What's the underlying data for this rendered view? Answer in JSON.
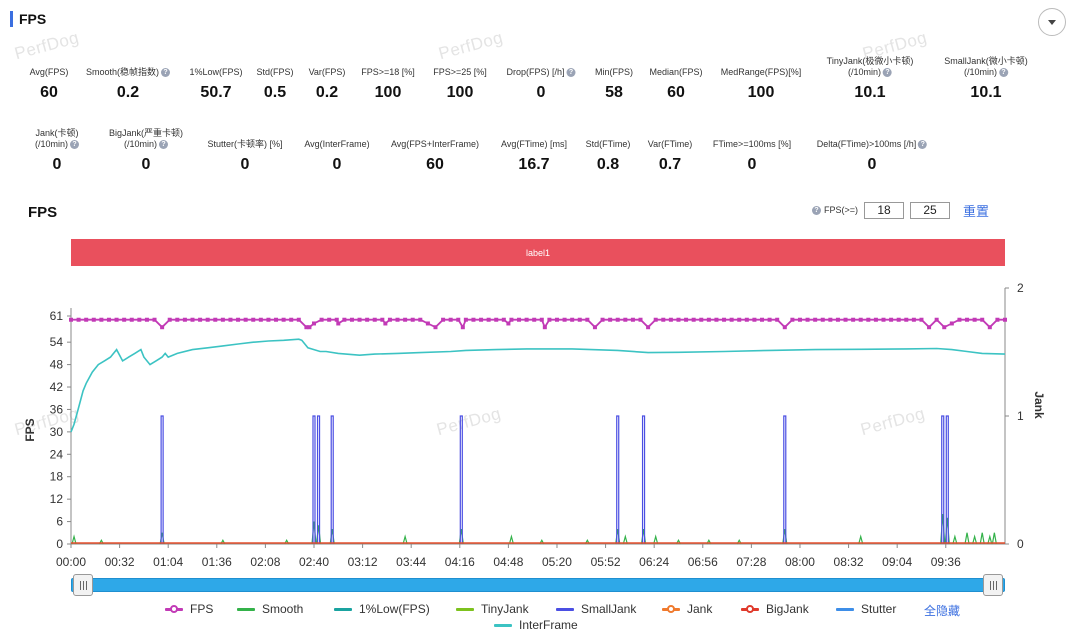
{
  "panel": {
    "title": "FPS",
    "collapse_icon": "chevron-down-icon"
  },
  "watermark": "PerfDog",
  "metrics_row1": [
    {
      "label": "Avg(FPS)",
      "value": "60",
      "help": false
    },
    {
      "label": "Smooth(稳帧指数)",
      "value": "0.2",
      "help": true
    },
    {
      "label": "1%Low(FPS)",
      "value": "50.7",
      "help": false
    },
    {
      "label": "Std(FPS)",
      "value": "0.5",
      "help": false
    },
    {
      "label": "Var(FPS)",
      "value": "0.2",
      "help": false
    },
    {
      "label": "FPS>=18 [%]",
      "value": "100",
      "help": false
    },
    {
      "label": "FPS>=25 [%]",
      "value": "100",
      "help": false
    },
    {
      "label": "Drop(FPS) [/h]",
      "value": "0",
      "help": true
    },
    {
      "label": "Min(FPS)",
      "value": "58",
      "help": false
    },
    {
      "label": "Median(FPS)",
      "value": "60",
      "help": false
    },
    {
      "label": "MedRange(FPS)[%]",
      "value": "100",
      "help": false
    },
    {
      "label": "TinyJank(极微小卡顿)",
      "label2": "(/10min)",
      "value": "10.1",
      "help": true
    },
    {
      "label": "SmallJank(微小卡顿)",
      "label2": "(/10min)",
      "value": "10.1",
      "help": true
    }
  ],
  "metrics_row2": [
    {
      "label": "Jank(卡顿)",
      "label2": "(/10min)",
      "value": "0",
      "help": true
    },
    {
      "label": "BigJank(严重卡顿)",
      "label2": "(/10min)",
      "value": "0",
      "help": true
    },
    {
      "label": "Stutter(卡顿率) [%]",
      "value": "0",
      "help": false
    },
    {
      "label": "Avg(InterFrame)",
      "value": "0",
      "help": false
    },
    {
      "label": "Avg(FPS+InterFrame)",
      "value": "60",
      "help": false
    },
    {
      "label": "Avg(FTime) [ms]",
      "value": "16.7",
      "help": false
    },
    {
      "label": "Std(FTime)",
      "value": "0.8",
      "help": false
    },
    {
      "label": "Var(FTime)",
      "value": "0.7",
      "help": false
    },
    {
      "label": "FTime>=100ms [%]",
      "value": "0",
      "help": false
    },
    {
      "label": "Delta(FTime)>100ms [/h]",
      "value": "0",
      "help": true
    }
  ],
  "section": {
    "title": "FPS",
    "threshold_label": "FPS(>=)",
    "threshold_1": "18",
    "threshold_2": "25",
    "reset_label": "重置"
  },
  "label_bar": {
    "text": "label1",
    "color": "#e9505d"
  },
  "chart_data": {
    "type": "line",
    "xlabel": "",
    "ylabel": "FPS",
    "y2label": "Jank",
    "ylim": [
      0,
      61
    ],
    "y2lim": [
      0,
      2
    ],
    "yticks": [
      0,
      6,
      12,
      18,
      24,
      30,
      36,
      42,
      48,
      54,
      61
    ],
    "y2ticks": [
      0,
      1,
      2
    ],
    "xlim_seconds": [
      0,
      615
    ],
    "xticks": [
      "00:00",
      "00:32",
      "01:04",
      "01:36",
      "02:08",
      "02:40",
      "03:12",
      "03:44",
      "04:16",
      "04:48",
      "05:20",
      "05:52",
      "06:24",
      "06:56",
      "07:28",
      "08:00",
      "08:32",
      "09:04",
      "09:36"
    ],
    "grid": false,
    "legend_position": "bottom",
    "series": [
      {
        "name": "FPS",
        "color": "#c23ab6",
        "baseline": 60,
        "dips": [
          [
            60,
            58
          ],
          [
            155,
            58
          ],
          [
            157,
            58
          ],
          [
            160,
            59
          ],
          [
            176,
            59
          ],
          [
            235,
            59
          ],
          [
            240,
            58
          ],
          [
            258,
            58
          ],
          [
            312,
            58
          ],
          [
            345,
            58
          ],
          [
            380,
            58
          ],
          [
            470,
            58
          ],
          [
            575,
            58
          ],
          [
            605,
            58
          ],
          [
            565,
            58
          ],
          [
            580,
            59
          ],
          [
            288,
            59
          ],
          [
            207,
            59
          ]
        ]
      },
      {
        "name": "InterFrame",
        "color": "#3cc3c3",
        "points": [
          [
            0,
            30
          ],
          [
            2,
            32
          ],
          [
            4,
            35
          ],
          [
            6,
            38
          ],
          [
            8,
            41
          ],
          [
            10,
            43
          ],
          [
            14,
            46
          ],
          [
            18,
            48
          ],
          [
            22,
            49
          ],
          [
            26,
            50
          ],
          [
            30,
            52
          ],
          [
            34,
            49
          ],
          [
            38,
            50
          ],
          [
            42,
            51
          ],
          [
            46,
            52
          ],
          [
            48,
            50
          ],
          [
            52,
            48
          ],
          [
            56,
            49
          ],
          [
            60,
            50
          ],
          [
            62,
            51
          ],
          [
            64,
            50
          ],
          [
            70,
            51
          ],
          [
            80,
            52
          ],
          [
            90,
            52.5
          ],
          [
            100,
            53
          ],
          [
            110,
            53.5
          ],
          [
            120,
            54
          ],
          [
            130,
            54.3
          ],
          [
            140,
            54.5
          ],
          [
            150,
            54.8
          ],
          [
            152,
            54.5
          ],
          [
            156,
            52.5
          ],
          [
            160,
            52
          ],
          [
            164,
            51.5
          ],
          [
            168,
            51.5
          ],
          [
            176,
            51
          ],
          [
            190,
            50.5
          ],
          [
            200,
            50.8
          ],
          [
            215,
            51
          ],
          [
            230,
            51.2
          ],
          [
            250,
            51.5
          ],
          [
            260,
            51.8
          ],
          [
            280,
            52
          ],
          [
            300,
            52.2
          ],
          [
            330,
            52.2
          ],
          [
            360,
            51.8
          ],
          [
            380,
            51.2
          ],
          [
            400,
            51.3
          ],
          [
            430,
            51.5
          ],
          [
            460,
            51.8
          ],
          [
            490,
            52
          ],
          [
            520,
            52.1
          ],
          [
            550,
            52.2
          ],
          [
            570,
            52.3
          ],
          [
            580,
            52
          ],
          [
            590,
            51.5
          ],
          [
            600,
            51
          ],
          [
            615,
            50.8
          ]
        ]
      },
      {
        "name": "SmallJank",
        "color": "#4b4fe3",
        "spikes": [
          60,
          160,
          163,
          172,
          257,
          360,
          377,
          470,
          574,
          577
        ]
      },
      {
        "name": "Smooth",
        "color": "#34b24a",
        "spikes": [
          [
            2,
            2
          ],
          [
            20,
            1
          ],
          [
            60,
            3
          ],
          [
            100,
            1
          ],
          [
            142,
            1
          ],
          [
            160,
            6
          ],
          [
            163,
            5
          ],
          [
            172,
            4
          ],
          [
            220,
            2
          ],
          [
            257,
            4
          ],
          [
            290,
            2
          ],
          [
            310,
            1
          ],
          [
            340,
            1
          ],
          [
            360,
            4
          ],
          [
            365,
            2
          ],
          [
            377,
            4
          ],
          [
            385,
            2
          ],
          [
            400,
            1
          ],
          [
            420,
            1
          ],
          [
            440,
            1
          ],
          [
            470,
            4
          ],
          [
            520,
            2
          ],
          [
            574,
            8
          ],
          [
            577,
            7
          ],
          [
            582,
            2
          ],
          [
            590,
            3
          ],
          [
            595,
            2
          ],
          [
            600,
            3
          ],
          [
            605,
            2
          ],
          [
            608,
            3
          ]
        ]
      },
      {
        "name": "1%Low(FPS)",
        "color": "#1aa3a0"
      },
      {
        "name": "TinyJank",
        "color": "#7dc21e"
      },
      {
        "name": "Jank",
        "color": "#f07a2e"
      },
      {
        "name": "BigJank",
        "color": "#e03a2c"
      },
      {
        "name": "Stutter",
        "color": "#3e8ee8"
      }
    ]
  },
  "legend": {
    "items": [
      {
        "name": "FPS",
        "color": "#c23ab6",
        "marker": true
      },
      {
        "name": "Smooth",
        "color": "#34b24a",
        "marker": false
      },
      {
        "name": "1%Low(FPS)",
        "color": "#1aa3a0",
        "marker": false
      },
      {
        "name": "TinyJank",
        "color": "#7dc21e",
        "marker": false
      },
      {
        "name": "SmallJank",
        "color": "#4b4fe3",
        "marker": false
      },
      {
        "name": "Jank",
        "color": "#f07a2e",
        "marker": true
      },
      {
        "name": "BigJank",
        "color": "#e03a2c",
        "marker": true
      },
      {
        "name": "Stutter",
        "color": "#3e8ee8",
        "marker": false
      },
      {
        "name": "InterFrame",
        "color": "#3cc3c3",
        "marker": false
      }
    ],
    "toggle_all_label": "全隐藏"
  },
  "slider": {
    "range_start_fraction": 0,
    "range_end_fraction": 1
  }
}
